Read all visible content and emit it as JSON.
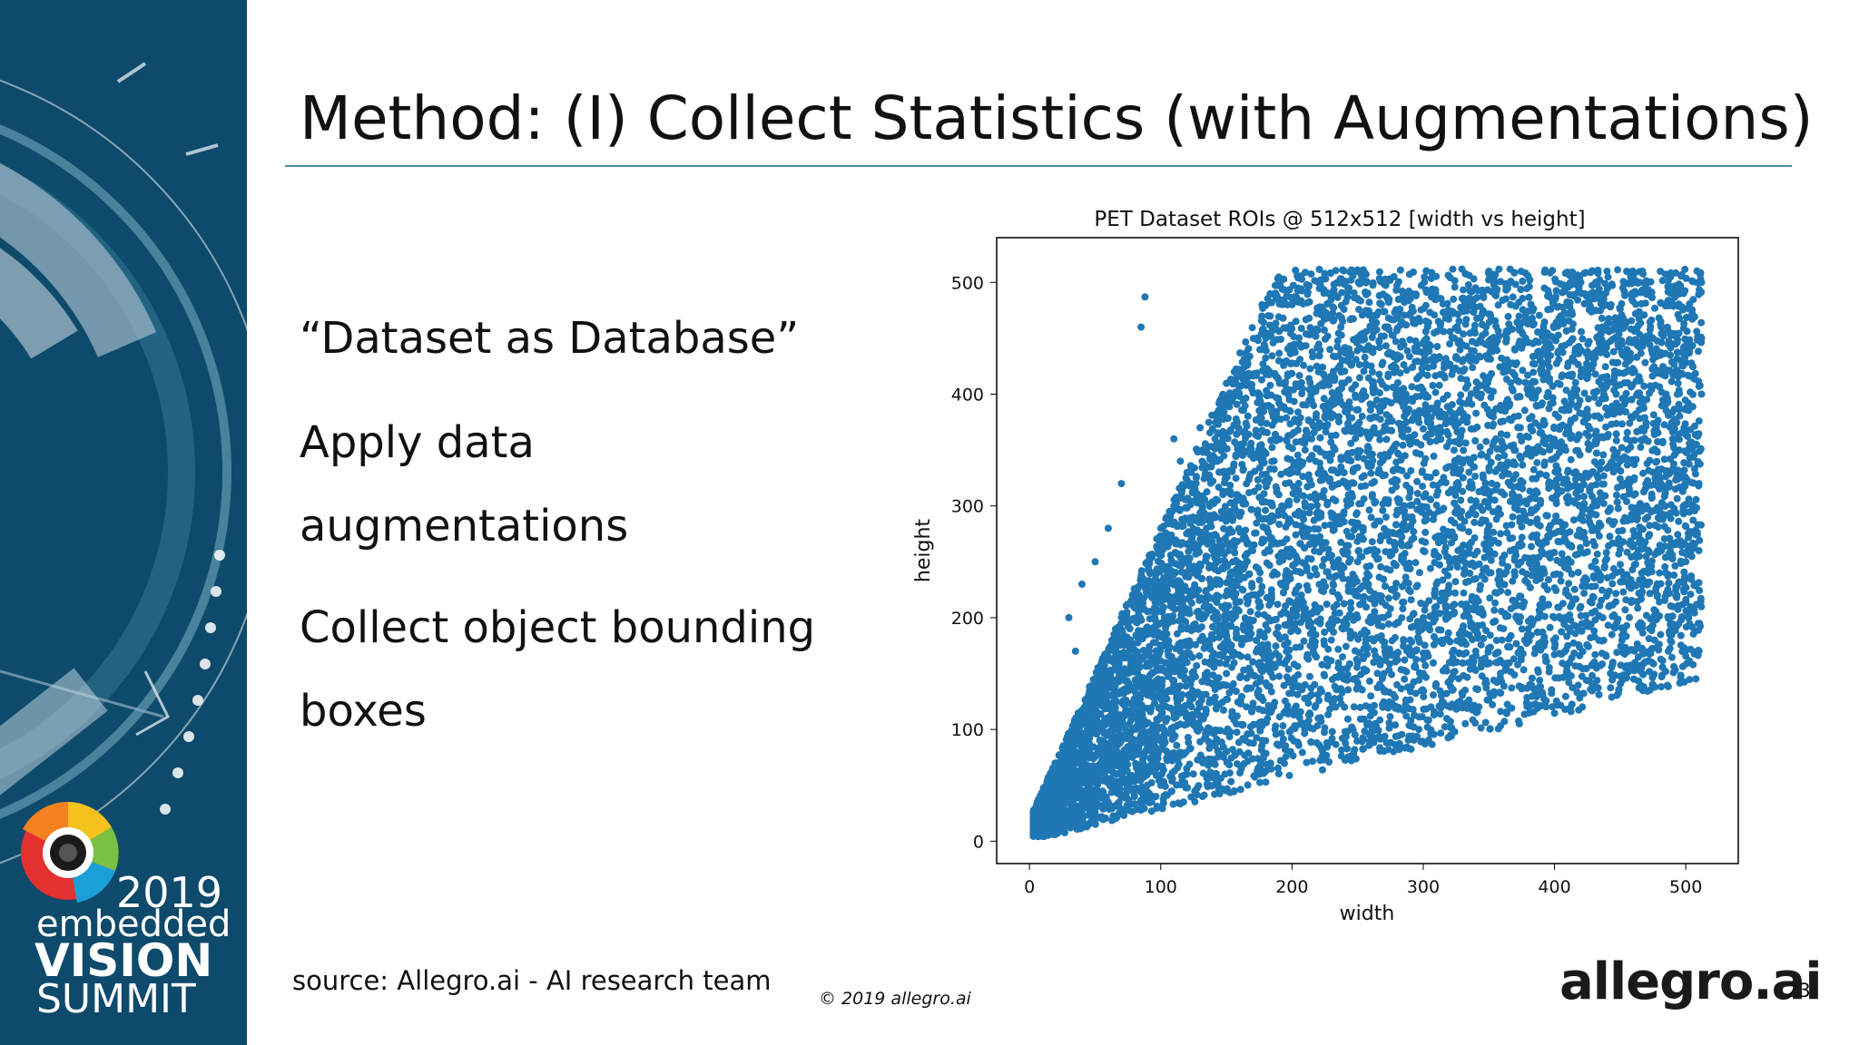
{
  "slide": {
    "title": "Method: (I) Collect Statistics (with Augmentations)",
    "bullets": [
      "“Dataset as Database”",
      "Apply data",
      "augmentations",
      "Collect object bounding",
      "boxes"
    ],
    "source": "source: Allegro.ai - AI research team",
    "copyright": "© 2019 allegro.ai",
    "logo": "allegro.ai",
    "page_number": "23"
  },
  "branding": {
    "year": "2019",
    "line1": "embedded",
    "line2": "VISION",
    "line3": "SUMMIT",
    "sidebar_color": "#0d4a6b",
    "accent": "#4a8aa6"
  },
  "chart_data": {
    "type": "scatter",
    "title": "PET Dataset ROIs @ 512x512 [width vs height]",
    "xlabel": "width",
    "ylabel": "height",
    "xlim": [
      -25,
      540
    ],
    "ylim": [
      -20,
      540
    ],
    "xticks": [
      0,
      100,
      200,
      300,
      400,
      500
    ],
    "yticks": [
      0,
      100,
      200,
      300,
      400,
      500
    ],
    "color": "#1f77b4",
    "series": [
      {
        "values_description_free": true,
        "points": [
          [
            5,
            8
          ],
          [
            10,
            12
          ],
          [
            14,
            20
          ],
          [
            18,
            15
          ],
          [
            22,
            30
          ],
          [
            26,
            22
          ],
          [
            30,
            35
          ],
          [
            34,
            28
          ],
          [
            38,
            40
          ],
          [
            42,
            55
          ],
          [
            46,
            48
          ],
          [
            50,
            60
          ],
          [
            55,
            70
          ],
          [
            60,
            65
          ],
          [
            65,
            80
          ],
          [
            70,
            90
          ],
          [
            75,
            75
          ],
          [
            80,
            100
          ],
          [
            85,
            110
          ],
          [
            90,
            95
          ],
          [
            95,
            130
          ],
          [
            100,
            120
          ],
          [
            105,
            150
          ],
          [
            110,
            140
          ],
          [
            115,
            170
          ],
          [
            120,
            160
          ],
          [
            125,
            190
          ],
          [
            130,
            180
          ],
          [
            135,
            210
          ],
          [
            140,
            200
          ],
          [
            145,
            230
          ],
          [
            150,
            220
          ],
          [
            155,
            250
          ],
          [
            160,
            240
          ],
          [
            165,
            270
          ],
          [
            170,
            260
          ],
          [
            175,
            290
          ],
          [
            180,
            280
          ],
          [
            185,
            300
          ],
          [
            190,
            310
          ],
          [
            195,
            320
          ],
          [
            200,
            330
          ],
          [
            205,
            340
          ],
          [
            210,
            350
          ],
          [
            215,
            360
          ],
          [
            220,
            370
          ],
          [
            225,
            380
          ],
          [
            230,
            390
          ],
          [
            235,
            400
          ],
          [
            240,
            410
          ],
          [
            60,
            30
          ],
          [
            80,
            40
          ],
          [
            100,
            50
          ],
          [
            120,
            60
          ],
          [
            140,
            70
          ],
          [
            160,
            80
          ],
          [
            180,
            90
          ],
          [
            200,
            100
          ],
          [
            220,
            110
          ],
          [
            240,
            120
          ],
          [
            260,
            130
          ],
          [
            280,
            140
          ],
          [
            300,
            150
          ],
          [
            320,
            160
          ],
          [
            340,
            170
          ],
          [
            360,
            180
          ],
          [
            380,
            190
          ],
          [
            400,
            200
          ],
          [
            420,
            210
          ],
          [
            440,
            220
          ],
          [
            460,
            230
          ],
          [
            480,
            240
          ],
          [
            500,
            250
          ],
          [
            510,
            260
          ],
          [
            505,
            300
          ],
          [
            495,
            350
          ],
          [
            485,
            400
          ],
          [
            475,
            450
          ],
          [
            465,
            500
          ],
          [
            455,
            510
          ],
          [
            300,
            200
          ],
          [
            320,
            250
          ],
          [
            340,
            300
          ],
          [
            360,
            350
          ],
          [
            380,
            400
          ],
          [
            400,
            450
          ],
          [
            420,
            500
          ],
          [
            440,
            510
          ],
          [
            350,
            510
          ],
          [
            250,
            510
          ],
          [
            200,
            480
          ],
          [
            180,
            450
          ],
          [
            160,
            420
          ],
          [
            150,
            390
          ],
          [
            130,
            370
          ],
          [
            120,
            330
          ],
          [
            110,
            300
          ],
          [
            100,
            280
          ],
          [
            90,
            250
          ],
          [
            80,
            220
          ],
          [
            20,
            10
          ],
          [
            25,
            15
          ],
          [
            30,
            20
          ],
          [
            35,
            25
          ],
          [
            40,
            18
          ],
          [
            45,
            30
          ],
          [
            50,
            25
          ],
          [
            55,
            40
          ],
          [
            60,
            35
          ],
          [
            65,
            45
          ],
          [
            250,
            250
          ],
          [
            260,
            200
          ],
          [
            270,
            150
          ],
          [
            280,
            220
          ],
          [
            290,
            180
          ],
          [
            300,
            260
          ],
          [
            310,
            230
          ],
          [
            330,
            280
          ],
          [
            350,
            240
          ],
          [
            370,
            300
          ],
          [
            390,
            260
          ],
          [
            410,
            320
          ],
          [
            430,
            280
          ],
          [
            450,
            340
          ],
          [
            470,
            300
          ],
          [
            490,
            360
          ],
          [
            510,
            320
          ],
          [
            512,
            400
          ],
          [
            512,
            450
          ],
          [
            512,
            500
          ],
          [
            150,
            150
          ],
          [
            170,
            120
          ],
          [
            190,
            160
          ],
          [
            210,
            140
          ],
          [
            230,
            180
          ],
          [
            250,
            160
          ],
          [
            270,
            200
          ],
          [
            290,
            170
          ],
          [
            310,
            210
          ],
          [
            330,
            190
          ],
          [
            88,
            487
          ],
          [
            85,
            460
          ],
          [
            110,
            360
          ],
          [
            115,
            340
          ],
          [
            70,
            320
          ],
          [
            60,
            280
          ],
          [
            50,
            250
          ],
          [
            40,
            230
          ],
          [
            30,
            200
          ],
          [
            35,
            170
          ]
        ]
      }
    ]
  }
}
